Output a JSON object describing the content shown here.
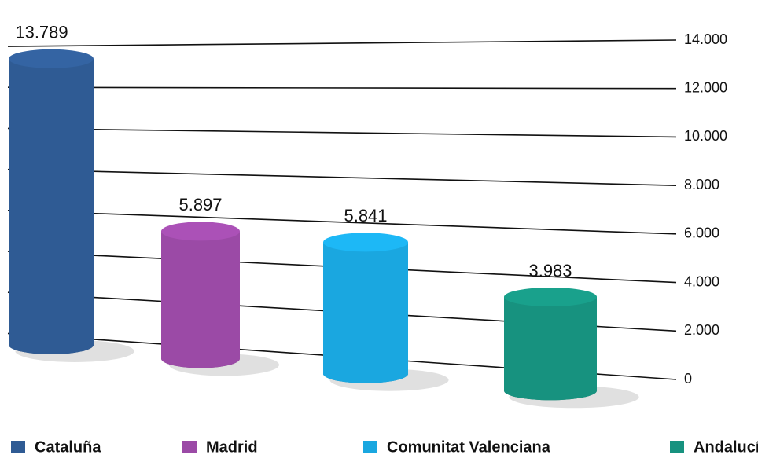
{
  "chart_data": {
    "type": "bar",
    "categories": [
      "Cataluña",
      "Madrid",
      "Comunitat Valenciana",
      "Andalucía"
    ],
    "series": [
      {
        "name": null,
        "values": [
          13789,
          5897,
          5841,
          3983
        ],
        "value_labels": [
          "13.789",
          "5.897",
          "5.841",
          "3.983"
        ]
      }
    ],
    "colors": [
      "#2f5b94",
      "#9b4aa6",
      "#1aa7e0",
      "#17927f"
    ],
    "ylim": [
      0,
      14000
    ],
    "yticks": [
      0,
      {
        "value": 2000,
        "label": "2.000"
      },
      {
        "value": 4000,
        "label": "4.000"
      },
      {
        "value": 6000,
        "label": "6.000"
      },
      {
        "value": 8000,
        "label": "8.000"
      },
      {
        "value": 10000,
        "label": "10.000"
      },
      {
        "value": 12000,
        "label": "12.000"
      },
      {
        "value": 14000,
        "label": "14.000"
      }
    ],
    "grid": true,
    "legend": "bottom"
  }
}
